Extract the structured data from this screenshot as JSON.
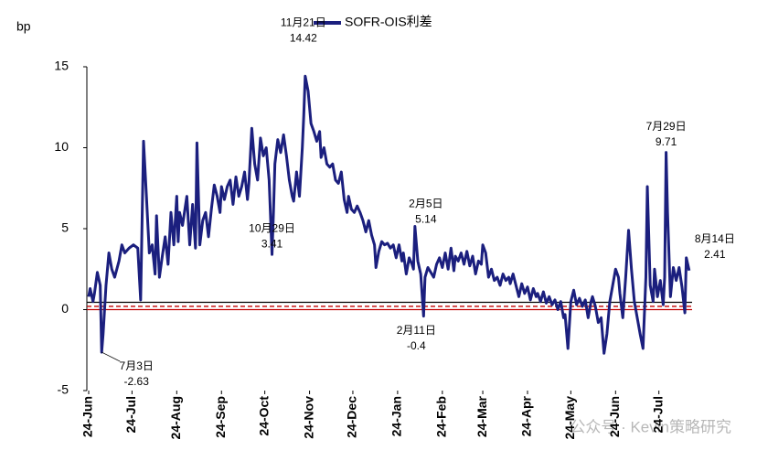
{
  "chart_data": {
    "type": "line",
    "y_axis_label": "bp",
    "watermark": "公众号 · Kevin策略研究",
    "xlim": [
      0,
      418
    ],
    "xticks": [
      {
        "value": 0,
        "label": "24-Jun"
      },
      {
        "value": 30,
        "label": "24-Jul"
      },
      {
        "value": 61,
        "label": "24-Aug"
      },
      {
        "value": 92,
        "label": "24-Sep"
      },
      {
        "value": 122,
        "label": "24-Oct"
      },
      {
        "value": 153,
        "label": "24-Nov"
      },
      {
        "value": 183,
        "label": "24-Dec"
      },
      {
        "value": 214,
        "label": "24-Jan"
      },
      {
        "value": 245,
        "label": "24-Feb"
      },
      {
        "value": 273,
        "label": "24-Mar"
      },
      {
        "value": 304,
        "label": "24-Apr"
      },
      {
        "value": 334,
        "label": "24-May"
      },
      {
        "value": 365,
        "label": "24-Jun"
      },
      {
        "value": 395,
        "label": "24-Jul"
      }
    ],
    "ylim": [
      -5,
      15
    ],
    "yticks": [
      -5,
      0,
      5,
      10,
      15
    ],
    "legend": "top",
    "reference_lines": [
      {
        "value": 0.45,
        "color": "#000000",
        "style": "solid"
      },
      {
        "value": 0.2,
        "color": "#c00000",
        "style": "dashed"
      },
      {
        "value": 0,
        "color": "#c00000",
        "style": "solid"
      }
    ],
    "x": [
      0,
      1,
      3,
      4,
      6,
      8,
      9,
      10,
      12,
      14,
      16,
      18,
      21,
      23,
      25,
      28,
      31,
      34,
      36,
      37,
      38,
      40,
      42,
      44,
      46,
      47,
      49,
      51,
      53,
      55,
      57,
      59,
      61,
      62,
      63,
      65,
      68,
      70,
      72,
      74,
      75,
      77,
      79,
      81,
      83,
      85,
      87,
      89,
      91,
      92,
      94,
      96,
      98,
      100,
      102,
      104,
      106,
      108,
      110,
      111,
      113,
      115,
      117,
      119,
      121,
      123,
      125,
      127,
      128,
      129,
      131,
      133,
      135,
      137,
      139,
      141,
      142,
      144,
      146,
      148,
      149,
      150,
      152,
      154,
      156,
      158,
      160,
      161,
      163,
      165,
      167,
      169,
      171,
      173,
      175,
      177,
      179,
      180,
      182,
      184,
      186,
      188,
      190,
      192,
      194,
      196,
      198,
      199,
      201,
      203,
      205,
      207,
      209,
      211,
      213,
      215,
      217,
      218,
      220,
      222,
      224,
      225,
      226,
      228,
      230,
      232,
      233,
      235,
      237,
      239,
      241,
      243,
      245,
      247,
      249,
      251,
      253,
      254,
      256,
      258,
      260,
      262,
      264,
      266,
      268,
      270,
      272,
      273,
      275,
      277,
      279,
      281,
      283,
      285,
      287,
      289,
      291,
      292,
      294,
      296,
      298,
      300,
      302,
      304,
      306,
      308,
      310,
      311,
      313,
      315,
      317,
      319,
      321,
      323,
      325,
      327,
      329,
      330,
      332,
      334,
      336,
      338,
      340,
      342,
      344,
      346,
      348,
      349,
      351,
      353,
      355,
      357,
      359,
      361,
      363,
      365,
      367,
      368,
      370,
      372,
      374,
      376,
      378,
      380,
      382,
      384,
      386,
      387,
      389,
      391,
      392,
      394,
      396,
      398,
      399,
      400,
      401,
      403,
      405,
      407,
      409,
      411,
      413,
      414,
      416
    ],
    "series": [
      {
        "name": "SOFR-OIS利差",
        "color": "#1b1f7e",
        "values": [
          0.8,
          1.3,
          0.5,
          1.0,
          2.3,
          1.5,
          -2.63,
          -1.5,
          1.5,
          3.5,
          2.5,
          2.0,
          3.0,
          4.0,
          3.5,
          3.8,
          4.0,
          3.8,
          0.6,
          5.5,
          10.4,
          7.0,
          3.5,
          4.0,
          2.2,
          5.8,
          2.0,
          3.3,
          4.5,
          2.8,
          6.0,
          4.0,
          7.0,
          4.2,
          6.0,
          5.2,
          7.0,
          4.0,
          6.5,
          3.8,
          10.3,
          4.0,
          5.5,
          6.0,
          4.5,
          6.2,
          7.7,
          7.0,
          6.0,
          7.6,
          6.8,
          7.6,
          8.0,
          6.5,
          8.2,
          7.0,
          7.6,
          8.5,
          6.8,
          7.8,
          11.2,
          9.0,
          8.0,
          10.6,
          9.5,
          10.0,
          8.0,
          3.41,
          6.0,
          9.0,
          10.5,
          9.7,
          10.8,
          9.5,
          8.0,
          7.0,
          6.7,
          8.5,
          7.0,
          10.0,
          12.0,
          14.42,
          13.5,
          11.5,
          11.0,
          10.4,
          11.0,
          9.4,
          10.0,
          9.0,
          8.8,
          9.0,
          8.0,
          7.8,
          8.5,
          6.8,
          6.0,
          7.0,
          6.2,
          6.0,
          6.4,
          6.0,
          5.5,
          4.8,
          5.5,
          4.6,
          4.0,
          2.6,
          3.6,
          4.2,
          4.0,
          4.1,
          3.8,
          4.0,
          3.2,
          4.0,
          3.0,
          3.5,
          2.2,
          3.2,
          2.8,
          2.5,
          5.14,
          3.0,
          2.2,
          -0.4,
          2.0,
          2.6,
          2.3,
          2.0,
          2.8,
          3.2,
          2.6,
          3.5,
          2.5,
          3.8,
          2.4,
          3.3,
          3.0,
          3.5,
          2.8,
          3.6,
          2.7,
          3.3,
          2.2,
          3.0,
          2.8,
          4.0,
          3.5,
          2.0,
          2.5,
          1.8,
          2.0,
          1.5,
          2.2,
          1.8,
          2.0,
          1.6,
          2.2,
          1.5,
          0.8,
          1.6,
          1.0,
          1.4,
          0.6,
          1.3,
          0.8,
          1.0,
          0.5,
          1.1,
          0.4,
          0.8,
          0.3,
          0.6,
          0.0,
          0.5,
          -0.5,
          -0.3,
          -2.4,
          0.5,
          1.2,
          0.3,
          0.7,
          0.2,
          0.6,
          -0.5,
          0.5,
          0.8,
          0.2,
          -0.8,
          -0.5,
          -2.7,
          -1.5,
          0.5,
          1.5,
          2.5,
          2.0,
          1.0,
          -0.5,
          2.0,
          4.9,
          2.5,
          0.5,
          -0.5,
          -1.5,
          -2.4,
          2.0,
          7.6,
          1.5,
          0.5,
          2.5,
          0.8,
          1.8,
          0.3,
          2.0,
          9.71,
          6.0,
          0.8,
          2.6,
          1.8,
          2.6,
          1.4,
          -0.2,
          3.2,
          2.41
        ]
      }
    ],
    "annotations": [
      {
        "date": "7月3日",
        "value": -2.63,
        "x": 9
      },
      {
        "date": "10月29日",
        "value": 3.41,
        "x": 127
      },
      {
        "date": "11月21日",
        "value": 14.42,
        "x": 150
      },
      {
        "date": "2月5日",
        "value": 5.14,
        "x": 226
      },
      {
        "date": "2月11日",
        "value": -0.4,
        "x": 232
      },
      {
        "date": "7月29日",
        "value": 9.71,
        "x": 400
      },
      {
        "date": "8月14日",
        "value": 2.41,
        "x": 416
      }
    ]
  }
}
